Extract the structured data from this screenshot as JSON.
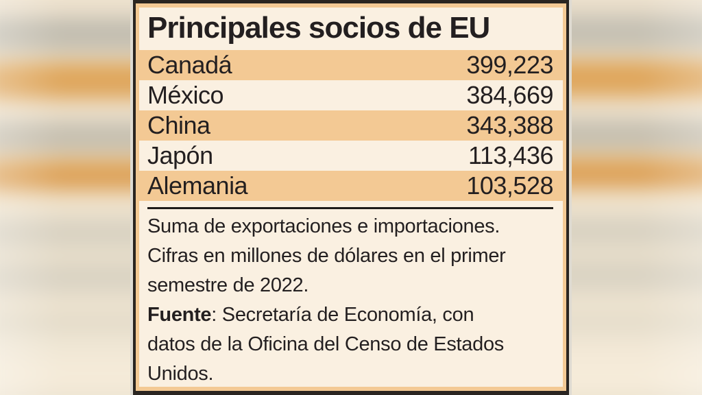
{
  "title": "Principales socios de EU",
  "table": {
    "rows": [
      {
        "country": "Canadá",
        "value": "399,223"
      },
      {
        "country": "México",
        "value": "384,669"
      },
      {
        "country": "China",
        "value": "343,388"
      },
      {
        "country": "Japón",
        "value": "113,436"
      },
      {
        "country": "Alemania",
        "value": "103,528"
      }
    ]
  },
  "notes": {
    "line1": "Suma de exportaciones e importaciones.",
    "line2": "Cifras en millones de dólares en el primer",
    "line3": "semestre de 2022.",
    "source": {
      "label": "Fuente",
      "line1_rest": ": Secretaría de Economía, con",
      "line2": "datos de la Oficina del Censo de Estados",
      "line3": "Unidos."
    }
  },
  "colors": {
    "highlight_row": "#F3C994",
    "panel_background": "#FAF0E1",
    "frame_dark": "#2A2521",
    "text": "#231F20",
    "background_base": "#EFE5D1"
  },
  "chart_data": {
    "type": "table",
    "title": "Principales socios de EU",
    "categories": [
      "Canadá",
      "México",
      "China",
      "Japón",
      "Alemania"
    ],
    "values": [
      399223,
      384669,
      343388,
      113436,
      103528
    ],
    "highlighted_rows": [
      "Canadá",
      "China",
      "Alemania"
    ],
    "unit": "millones de dólares",
    "measure": "Suma de exportaciones e importaciones",
    "period": "primer semestre de 2022",
    "source": "Secretaría de Economía, con datos de la Oficina del Censo de Estados Unidos"
  }
}
